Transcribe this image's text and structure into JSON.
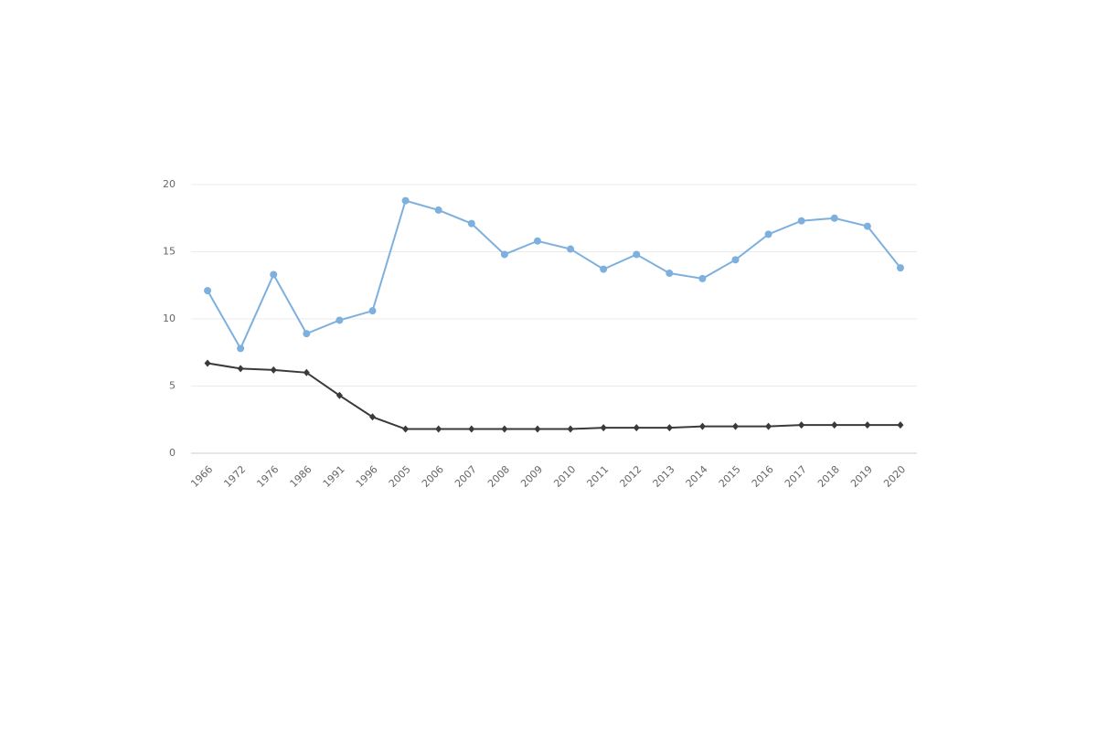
{
  "chart_data": {
    "type": "line",
    "categories": [
      "1966",
      "1972",
      "1976",
      "1986",
      "1991",
      "1996",
      "2005",
      "2006",
      "2007",
      "2008",
      "2009",
      "2010",
      "2011",
      "2012",
      "2013",
      "2014",
      "2015",
      "2016",
      "2017",
      "2018",
      "2019",
      "2020"
    ],
    "series": [
      {
        "color": "#7eb0dd",
        "marker": "circle",
        "values": [
          12.1,
          7.8,
          13.3,
          8.9,
          9.9,
          10.6,
          18.8,
          18.1,
          17.1,
          14.8,
          15.8,
          15.2,
          13.7,
          14.8,
          13.4,
          13.0,
          14.4,
          16.3,
          17.3,
          17.5,
          16.9,
          13.8
        ]
      },
      {
        "color": "#3a3a3a",
        "marker": "diamond",
        "values": [
          6.7,
          6.3,
          6.2,
          6.0,
          4.3,
          2.7,
          1.8,
          1.8,
          1.8,
          1.8,
          1.8,
          1.8,
          1.9,
          1.9,
          1.9,
          2.0,
          2.0,
          2.0,
          2.1,
          2.1,
          2.1,
          2.1
        ]
      }
    ],
    "ylim": [
      0,
      20
    ],
    "yticks": [
      0,
      5,
      10,
      15,
      20
    ],
    "grid": true
  }
}
